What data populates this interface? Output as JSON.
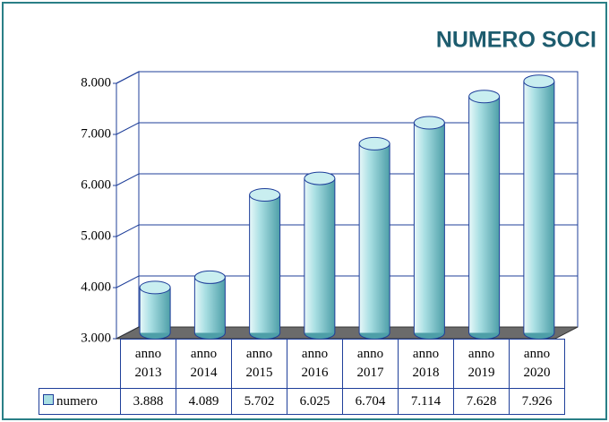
{
  "chart_data": {
    "type": "bar",
    "title": "NUMERO SOCI",
    "categories": [
      "anno 2013",
      "anno 2014",
      "anno 2015",
      "anno 2016",
      "anno 2017",
      "anno 2018",
      "anno 2019",
      "anno 2020"
    ],
    "series": [
      {
        "name": "numero",
        "color": "#a9dfe3",
        "values": [
          3888,
          4089,
          5702,
          6025,
          6704,
          7114,
          7628,
          7926
        ],
        "value_labels": [
          "3.888",
          "4.089",
          "5.702",
          "6.025",
          "6.704",
          "7.114",
          "7.628",
          "7.926"
        ]
      }
    ],
    "ylim": [
      3000,
      8000
    ],
    "yticks": [
      {
        "value": 3000,
        "label": "3.000"
      },
      {
        "value": 4000,
        "label": "4.000"
      },
      {
        "value": 5000,
        "label": "5.000"
      },
      {
        "value": 6000,
        "label": "6.000"
      },
      {
        "value": 7000,
        "label": "7.000"
      },
      {
        "value": 8000,
        "label": "8.000"
      }
    ],
    "grid": true
  }
}
